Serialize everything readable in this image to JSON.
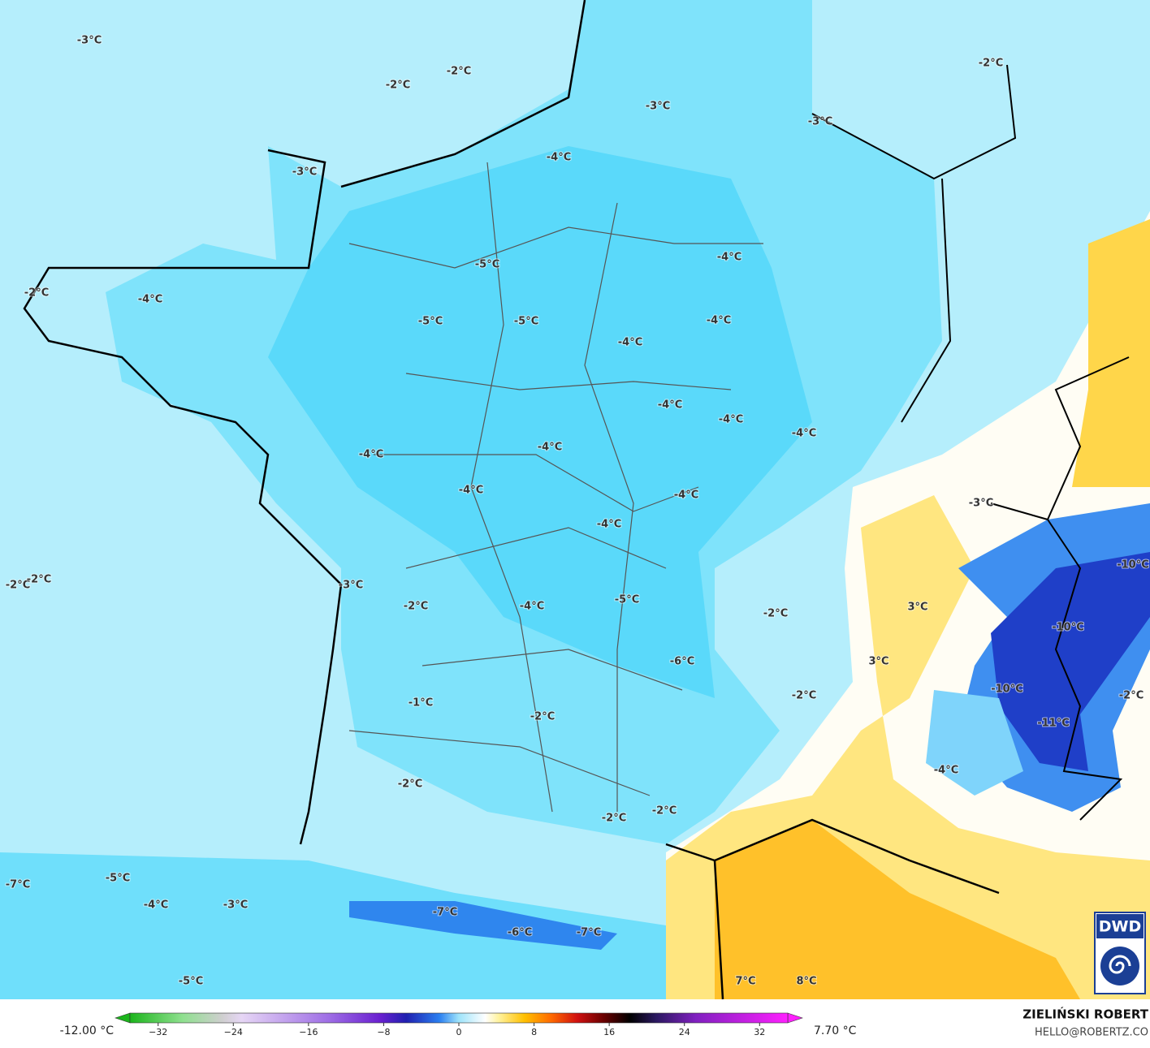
{
  "map": {
    "labels": [
      "-3°C",
      "-2°C",
      "-2°C",
      "-3°C",
      "-3°C",
      "-2°C",
      "-4°C",
      "-3°C",
      "-5°C",
      "-4°C",
      "-2°C",
      "-4°C",
      "-5°C",
      "-5°C",
      "-4°C",
      "-4°C",
      "-4°C",
      "-4°C",
      "-4°C",
      "-4°C",
      "-4°C",
      "-4°C",
      "-4°C",
      "-3°C",
      "-4°C",
      "-10°C",
      "-2°C",
      "-2°C",
      "-3°C",
      "-2°C",
      "-4°C",
      "3°C",
      "-5°C",
      "-2°C",
      "-10°C",
      "3°C",
      "-6°C",
      "-10°C",
      "-2°C",
      "-2°C",
      "-1°C",
      "-2°C",
      "-11°C",
      "-4°C",
      "-2°C",
      "-2°C",
      "-2°C",
      "-7°C",
      "-5°C",
      "-4°C",
      "-3°C",
      "-7°C",
      "-6°C",
      "-7°C",
      "7°C",
      "8°C",
      "-5°C"
    ]
  },
  "colorbar": {
    "min_label": "-12.00 °C",
    "max_label": "7.70 °C",
    "lim": [
      -35,
      35
    ],
    "ticks": [
      {
        "value": -32,
        "label": "−32"
      },
      {
        "value": -24,
        "label": "−24"
      },
      {
        "value": -16,
        "label": "−16"
      },
      {
        "value": -8,
        "label": "−8"
      },
      0,
      8,
      16,
      24,
      32
    ]
  },
  "credit": {
    "author": "ZIELIŃSKI ROBERT",
    "email": "HELLO@ROBERTZ.CO"
  },
  "logo": "DWD"
}
